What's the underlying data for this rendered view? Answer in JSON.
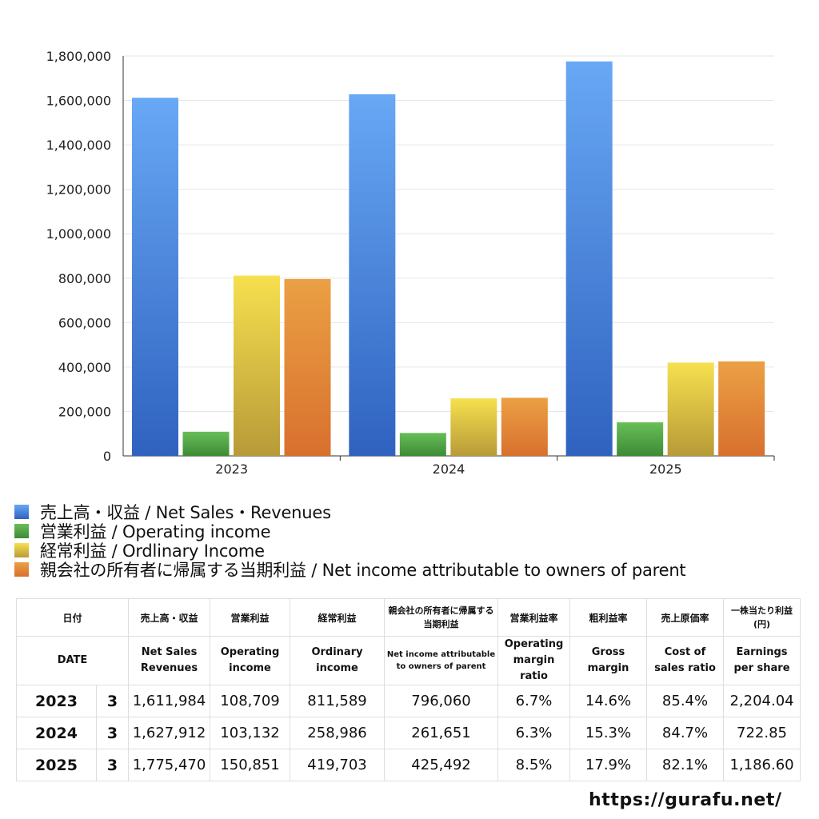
{
  "chart_data": {
    "type": "bar",
    "categories": [
      "2023",
      "2024",
      "2025"
    ],
    "ylim": [
      0,
      1800000
    ],
    "yticks": [
      "0",
      "200,000",
      "400,000",
      "600,000",
      "800,000",
      "1,000,000",
      "1,200,000",
      "1,400,000",
      "1,600,000",
      "1,800,000"
    ],
    "grid": true,
    "legend_position": "bottom",
    "series": [
      {
        "name": "売上高・収益 / Net Sales・Revenues",
        "values": [
          1611984,
          1627912,
          1775470
        ],
        "color_top": "#68a8f5",
        "color_bottom": "#2f62bf"
      },
      {
        "name": "営業利益 / Operating income",
        "values": [
          108709,
          103132,
          150851
        ],
        "color_top": "#68be58",
        "color_bottom": "#3d8b35"
      },
      {
        "name": "経常利益 / Ordlinary Income",
        "values": [
          811589,
          258986,
          419703
        ],
        "color_top": "#f6e04e",
        "color_bottom": "#b89a38"
      },
      {
        "name": "親会社の所有者に帰属する当期利益 / Net income attributable to owners of parent",
        "values": [
          796060,
          261651,
          425492
        ],
        "color_top": "#eba044",
        "color_bottom": "#d8702e"
      }
    ]
  },
  "table": {
    "header_jp": [
      "日付",
      "売上高・収益",
      "営業利益",
      "経常利益",
      "親会社の所有者に帰属する当期利益",
      "営業利益率",
      "粗利益率",
      "売上原価率",
      "一株当たり利益(円)"
    ],
    "header_en": [
      "DATE",
      "Net Sales Revenues",
      "Operating income",
      "Ordinary income",
      "Net income attributable to owners of parent",
      "Operating margin ratio",
      "Gross margin",
      "Cost of sales ratio",
      "Earnings per share"
    ],
    "rows": [
      {
        "year": "2023",
        "month": "3",
        "values": [
          "1,611,984",
          "108,709",
          "811,589",
          "796,060",
          "6.7%",
          "14.6%",
          "85.4%",
          "2,204.04"
        ]
      },
      {
        "year": "2024",
        "month": "3",
        "values": [
          "1,627,912",
          "103,132",
          "258,986",
          "261,651",
          "6.3%",
          "15.3%",
          "84.7%",
          "722.85"
        ]
      },
      {
        "year": "2025",
        "month": "3",
        "values": [
          "1,775,470",
          "150,851",
          "419,703",
          "425,492",
          "8.5%",
          "17.9%",
          "82.1%",
          "1,186.60"
        ]
      }
    ]
  },
  "footer": {
    "url": "https://gurafu.net/"
  }
}
